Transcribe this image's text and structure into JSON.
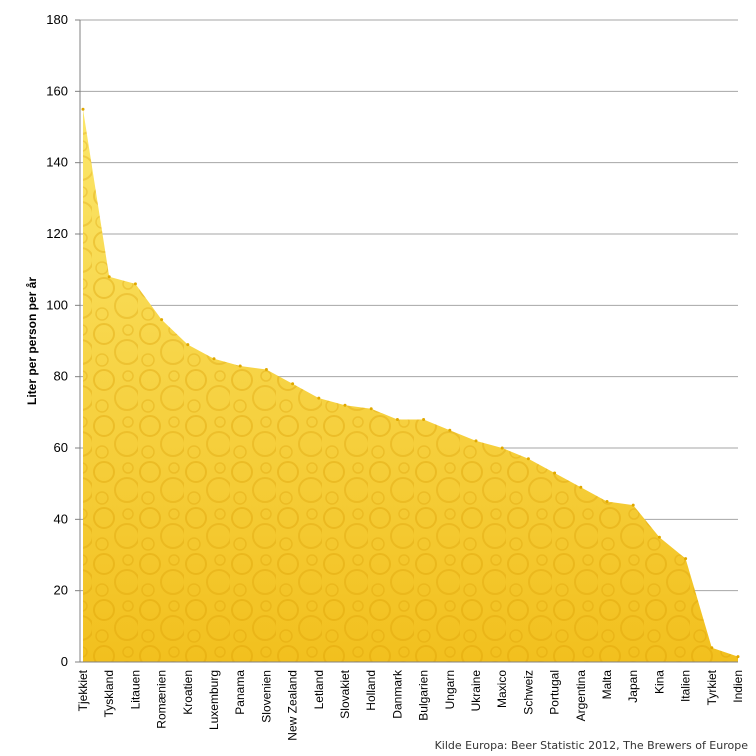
{
  "chart_data": {
    "type": "area",
    "title": "",
    "xlabel": "",
    "ylabel": "Liter per person per år",
    "ylim": [
      0,
      180
    ],
    "yticks": [
      0,
      20,
      40,
      60,
      80,
      100,
      120,
      140,
      160,
      180
    ],
    "grid": true,
    "fill_color": "#f2c01e",
    "fill_light": "#fbe66a",
    "categories": [
      "Tjekkiet",
      "Tyskland",
      "Litauen",
      "Romænien",
      "Kroatien",
      "Luxemburg",
      "Panama",
      "Slovenien",
      "New Zealand",
      "Letland",
      "Slovakiet",
      "Holland",
      "Danmark",
      "Bulgarien",
      "Ungarn",
      "Ukraine",
      "Maxico",
      "Schweiz",
      "Portugal",
      "Argentina",
      "Malta",
      "Japan",
      "Kina",
      "Italien",
      "Tyrkiet",
      "Indien"
    ],
    "values": [
      155,
      108,
      106,
      96,
      89,
      85,
      83,
      82,
      78,
      74,
      72,
      71,
      68,
      68,
      65,
      62,
      60,
      57,
      53,
      49,
      45,
      44,
      35,
      29,
      4,
      1.5
    ]
  },
  "source": "Kilde Europa: Beer Statistic 2012, The Brewers of Europe"
}
